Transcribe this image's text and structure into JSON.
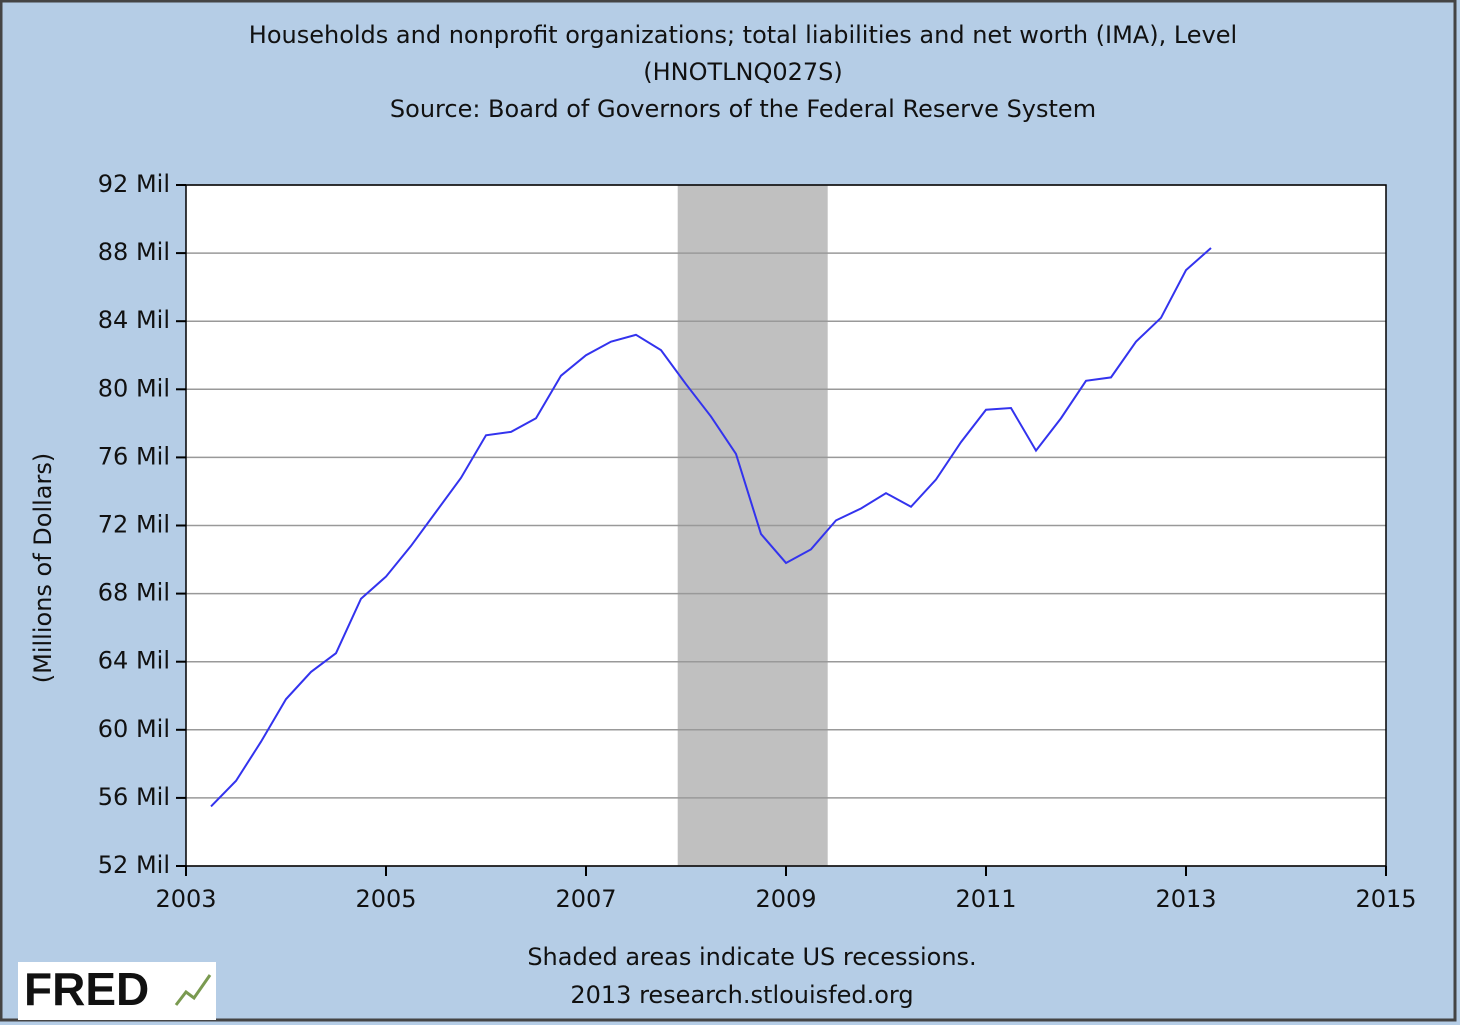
{
  "chart_data": {
    "type": "line",
    "title": [
      "Households and nonprofit organizations; total liabilities and net worth (IMA), Level",
      "(HNOTLNQ027S)",
      "Source: Board of Governors of the Federal Reserve System"
    ],
    "y_label": "(Millions of Dollars)",
    "note": "Shaded areas indicate US recessions.",
    "credit": "2013 research.stlouisfed.org",
    "logo": "FRED",
    "x": [
      2003.25,
      2003.5,
      2003.75,
      2004.0,
      2004.25,
      2004.5,
      2004.75,
      2005.0,
      2005.25,
      2005.5,
      2005.75,
      2006.0,
      2006.25,
      2006.5,
      2006.75,
      2007.0,
      2007.25,
      2007.5,
      2007.75,
      2008.0,
      2008.25,
      2008.5,
      2008.75,
      2009.0,
      2009.25,
      2009.5,
      2009.75,
      2010.0,
      2010.25,
      2010.5,
      2010.75,
      2011.0,
      2011.25,
      2011.5,
      2011.75,
      2012.0,
      2012.25,
      2012.5,
      2012.75,
      2013.0,
      2013.25
    ],
    "series": [
      {
        "name": "HNOTLNQ027S",
        "color": "#3333ee",
        "values": [
          55.5,
          57.0,
          59.3,
          61.8,
          63.4,
          64.5,
          67.7,
          69.0,
          70.8,
          72.8,
          74.8,
          77.3,
          77.5,
          78.3,
          80.8,
          82.0,
          82.8,
          83.2,
          82.3,
          80.3,
          78.4,
          76.2,
          71.5,
          69.8,
          70.6,
          72.3,
          73.0,
          73.9,
          73.1,
          74.7,
          76.9,
          78.8,
          78.9,
          76.4,
          78.3,
          80.5,
          80.7,
          82.8,
          84.2,
          87.0,
          88.3
        ]
      }
    ],
    "recessions": [
      [
        2007.917,
        2009.417
      ]
    ],
    "recession_color": "#c0c0c0",
    "xlim": [
      2003,
      2015
    ],
    "xticks": [
      2003,
      2005,
      2007,
      2009,
      2011,
      2013,
      2015
    ],
    "ylim": [
      52,
      92
    ],
    "yticks": [
      {
        "value": 52,
        "label": "52 Mil"
      },
      {
        "value": 56,
        "label": "56 Mil"
      },
      {
        "value": 60,
        "label": "60 Mil"
      },
      {
        "value": 64,
        "label": "64 Mil"
      },
      {
        "value": 68,
        "label": "68 Mil"
      },
      {
        "value": 72,
        "label": "72 Mil"
      },
      {
        "value": 76,
        "label": "76 Mil"
      },
      {
        "value": 80,
        "label": "80 Mil"
      },
      {
        "value": 84,
        "label": "84 Mil"
      },
      {
        "value": 88,
        "label": "88 Mil"
      },
      {
        "value": 92,
        "label": "92 Mil"
      }
    ],
    "grid": true
  }
}
